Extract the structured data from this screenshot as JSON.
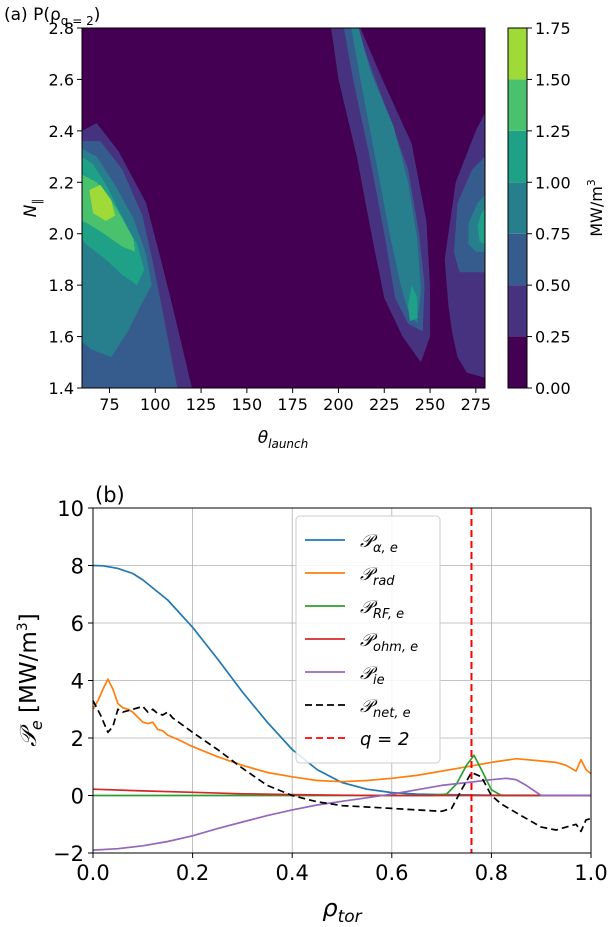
{
  "chart_data": [
    {
      "type": "heatmap",
      "title": "(a) P(ρ",
      "title_sub": "q = 2",
      "title_close": ")",
      "xlabel": "θ",
      "xlabel_sub": "launch",
      "ylabel": "N",
      "ylabel_sub": "∥",
      "xlim": [
        60,
        280
      ],
      "ylim": [
        1.4,
        2.8
      ],
      "xticks": [
        "75",
        "100",
        "125",
        "150",
        "175",
        "200",
        "225",
        "250",
        "275"
      ],
      "xtick_values": [
        75,
        100,
        125,
        150,
        175,
        200,
        225,
        250,
        275
      ],
      "yticks": [
        "1.4",
        "1.6",
        "1.8",
        "2.0",
        "2.2",
        "2.4",
        "2.6",
        "2.8"
      ],
      "ytick_values": [
        1.4,
        1.6,
        1.8,
        2.0,
        2.2,
        2.4,
        2.6,
        2.8
      ],
      "colorbar": {
        "label": "MW/m",
        "label_sup": "3",
        "levels": [
          0.0,
          0.25,
          0.5,
          0.75,
          1.0,
          1.25,
          1.5,
          1.75
        ],
        "ticks": [
          "0.00",
          "0.25",
          "0.50",
          "0.75",
          "1.00",
          "1.25",
          "1.50",
          "1.75"
        ],
        "colors": [
          "#440154",
          "#46327e",
          "#365c8d",
          "#277f8e",
          "#1fa187",
          "#4ac16d",
          "#a0da39",
          "#d7e21f"
        ]
      },
      "regions": [
        {
          "level": 0.25,
          "polygon": [
            [
              60,
              2.4
            ],
            [
              68,
              2.43
            ],
            [
              80,
              2.32
            ],
            [
              95,
              2.12
            ],
            [
              103,
              1.9
            ],
            [
              110,
              1.7
            ],
            [
              115,
              1.55
            ],
            [
              120,
              1.4
            ],
            [
              60,
              1.4
            ]
          ]
        },
        {
          "level": 0.25,
          "polygon": [
            [
              196,
              2.8
            ],
            [
              212,
              2.8
            ],
            [
              224,
              2.6
            ],
            [
              240,
              2.35
            ],
            [
              248,
              2.05
            ],
            [
              250,
              1.8
            ],
            [
              250,
              1.6
            ],
            [
              245,
              1.5
            ],
            [
              235,
              1.6
            ],
            [
              225,
              1.75
            ],
            [
              218,
              2.0
            ],
            [
              210,
              2.3
            ],
            [
              200,
              2.6
            ]
          ]
        },
        {
          "level": 0.25,
          "polygon": [
            [
              280,
              2.47
            ],
            [
              275,
              2.4
            ],
            [
              264,
              2.2
            ],
            [
              258,
              1.9
            ],
            [
              260,
              1.72
            ],
            [
              262,
              1.62
            ],
            [
              265,
              1.52
            ],
            [
              270,
              1.46
            ],
            [
              280,
              1.44
            ]
          ]
        },
        {
          "level": 0.5,
          "polygon": [
            [
              60,
              2.36
            ],
            [
              70,
              2.36
            ],
            [
              82,
              2.25
            ],
            [
              93,
              2.07
            ],
            [
              99,
              1.88
            ],
            [
              104,
              1.7
            ],
            [
              108,
              1.55
            ],
            [
              112,
              1.4
            ],
            [
              60,
              1.4
            ]
          ]
        },
        {
          "level": 0.5,
          "polygon": [
            [
              203,
              2.8
            ],
            [
              210,
              2.8
            ],
            [
              216,
              2.68
            ],
            [
              228,
              2.45
            ],
            [
              238,
              2.25
            ],
            [
              244,
              2.0
            ],
            [
              247,
              1.8
            ],
            [
              246,
              1.62
            ],
            [
              238,
              1.65
            ],
            [
              231,
              1.75
            ],
            [
              225,
              2.0
            ],
            [
              217,
              2.3
            ],
            [
              208,
              2.6
            ]
          ]
        },
        {
          "level": 0.5,
          "polygon": [
            [
              280,
              2.3
            ],
            [
              273,
              2.25
            ],
            [
              265,
              2.12
            ],
            [
              263,
              1.93
            ],
            [
              266,
              1.85
            ],
            [
              280,
              1.85
            ]
          ]
        },
        {
          "level": 0.75,
          "polygon": [
            [
              60,
              2.33
            ],
            [
              68,
              2.3
            ],
            [
              78,
              2.19
            ],
            [
              88,
              2.06
            ],
            [
              95,
              1.92
            ],
            [
              98,
              1.8
            ],
            [
              92,
              1.72
            ],
            [
              85,
              1.62
            ],
            [
              76,
              1.52
            ],
            [
              65,
              1.55
            ],
            [
              60,
              1.58
            ]
          ]
        },
        {
          "level": 0.75,
          "polygon": [
            [
              207,
              2.8
            ],
            [
              211,
              2.8
            ],
            [
              218,
              2.62
            ],
            [
              230,
              2.42
            ],
            [
              238,
              2.2
            ],
            [
              243,
              1.98
            ],
            [
              245,
              1.78
            ],
            [
              243,
              1.65
            ],
            [
              238,
              1.7
            ],
            [
              234,
              1.8
            ],
            [
              228,
              2.0
            ],
            [
              220,
              2.3
            ],
            [
              212,
              2.6
            ]
          ]
        },
        {
          "level": 0.75,
          "polygon": [
            [
              280,
              2.15
            ],
            [
              276,
              2.12
            ],
            [
              271,
              2.04
            ],
            [
              271,
              1.96
            ],
            [
              275,
              1.93
            ],
            [
              280,
              1.93
            ]
          ]
        },
        {
          "level": 1.0,
          "polygon": [
            [
              60,
              2.3
            ],
            [
              66,
              2.27
            ],
            [
              74,
              2.18
            ],
            [
              83,
              2.05
            ],
            [
              90,
              1.96
            ],
            [
              94,
              1.86
            ],
            [
              90,
              1.8
            ],
            [
              82,
              1.84
            ],
            [
              73,
              1.9
            ],
            [
              62,
              1.96
            ],
            [
              60,
              1.98
            ]
          ]
        },
        {
          "level": 1.0,
          "polygon": [
            [
              240,
              1.8
            ],
            [
              243,
              1.75
            ],
            [
              243,
              1.67
            ],
            [
              239,
              1.66
            ],
            [
              238,
              1.72
            ]
          ]
        },
        {
          "level": 1.0,
          "polygon": [
            [
              280,
              2.1
            ],
            [
              278,
              2.08
            ],
            [
              276,
              2.03
            ],
            [
              277,
              1.97
            ],
            [
              280,
              1.96
            ]
          ]
        },
        {
          "level": 1.25,
          "polygon": [
            [
              60,
              2.23
            ],
            [
              68,
              2.2
            ],
            [
              75,
              2.14
            ],
            [
              82,
              2.06
            ],
            [
              88,
              1.98
            ],
            [
              89,
              1.93
            ],
            [
              82,
              1.95
            ],
            [
              72,
              2.0
            ],
            [
              63,
              2.04
            ],
            [
              60,
              2.05
            ]
          ]
        },
        {
          "level": 1.5,
          "polygon": [
            [
              64,
              2.17
            ],
            [
              70,
              2.19
            ],
            [
              76,
              2.13
            ],
            [
              78,
              2.07
            ],
            [
              73,
              2.05
            ],
            [
              66,
              2.08
            ]
          ]
        }
      ]
    },
    {
      "type": "line",
      "title": "(b)",
      "xlabel": "ρ",
      "xlabel_sub": "tor",
      "ylabel": "𝒫",
      "ylabel_sub": "e",
      "ylabel_units": "[MW/m",
      "ylabel_units_sup": "3",
      "ylabel_close": "]",
      "xlim": [
        0.0,
        1.0
      ],
      "ylim": [
        -2,
        10
      ],
      "xticks": [
        "0.0",
        "0.2",
        "0.4",
        "0.6",
        "0.8",
        "1.0"
      ],
      "xtick_values": [
        0.0,
        0.2,
        0.4,
        0.6,
        0.8,
        1.0
      ],
      "yticks": [
        "−2",
        "0",
        "2",
        "4",
        "6",
        "8",
        "10"
      ],
      "ytick_values": [
        -2,
        0,
        2,
        4,
        6,
        8,
        10
      ],
      "grid": true,
      "legend_position": "top-right",
      "series": [
        {
          "name": "𝒫",
          "sub": "α, e",
          "color": "#1f77b4",
          "dash": "",
          "x": [
            0,
            0.02,
            0.05,
            0.08,
            0.1,
            0.15,
            0.2,
            0.25,
            0.3,
            0.35,
            0.4,
            0.45,
            0.5,
            0.55,
            0.6,
            0.65,
            0.7,
            0.8,
            1.0
          ],
          "y": [
            8.0,
            7.99,
            7.9,
            7.72,
            7.5,
            6.8,
            5.85,
            4.75,
            3.6,
            2.55,
            1.6,
            0.9,
            0.45,
            0.22,
            0.1,
            0.05,
            0.03,
            0.01,
            0.0
          ]
        },
        {
          "name": "𝒫",
          "sub": "rad",
          "color": "#ff7f0e",
          "dash": "",
          "x": [
            0,
            0.01,
            0.02,
            0.03,
            0.04,
            0.05,
            0.06,
            0.07,
            0.08,
            0.1,
            0.11,
            0.12,
            0.13,
            0.14,
            0.15,
            0.17,
            0.2,
            0.25,
            0.3,
            0.35,
            0.4,
            0.45,
            0.5,
            0.55,
            0.6,
            0.65,
            0.7,
            0.75,
            0.8,
            0.85,
            0.9,
            0.93,
            0.95,
            0.97,
            0.98,
            0.99,
            1.0
          ],
          "y": [
            3.0,
            3.3,
            3.7,
            4.05,
            3.7,
            3.2,
            3.05,
            3.0,
            2.9,
            2.55,
            2.5,
            2.55,
            2.3,
            2.25,
            2.1,
            1.95,
            1.7,
            1.35,
            1.05,
            0.8,
            0.65,
            0.52,
            0.48,
            0.52,
            0.6,
            0.7,
            0.85,
            1.0,
            1.15,
            1.28,
            1.2,
            1.15,
            1.05,
            0.85,
            1.25,
            0.9,
            0.75
          ]
        },
        {
          "name": "𝒫",
          "sub": "RF, e",
          "color": "#2ca02c",
          "dash": "",
          "x": [
            0,
            0.68,
            0.71,
            0.73,
            0.75,
            0.765,
            0.78,
            0.8,
            0.82,
            1.0
          ],
          "y": [
            0,
            0,
            0.05,
            0.4,
            1.05,
            1.4,
            0.9,
            0.2,
            0,
            0
          ]
        },
        {
          "name": "𝒫",
          "sub": "ohm, e",
          "color": "#d62728",
          "dash": "",
          "x": [
            0,
            0.1,
            0.2,
            0.3,
            0.4,
            0.5,
            0.6,
            1.0
          ],
          "y": [
            0.22,
            0.16,
            0.11,
            0.06,
            0.03,
            0.01,
            0,
            0
          ]
        },
        {
          "name": "𝒫",
          "sub": "ie",
          "color": "#9467bd",
          "dash": "",
          "x": [
            0,
            0.05,
            0.1,
            0.15,
            0.2,
            0.25,
            0.3,
            0.35,
            0.4,
            0.45,
            0.5,
            0.55,
            0.6,
            0.65,
            0.7,
            0.75,
            0.8,
            0.83,
            0.85,
            0.87,
            0.9,
            1.0
          ],
          "y": [
            -1.9,
            -1.85,
            -1.75,
            -1.6,
            -1.4,
            -1.15,
            -0.92,
            -0.7,
            -0.5,
            -0.33,
            -0.2,
            -0.08,
            0.05,
            0.2,
            0.35,
            0.45,
            0.55,
            0.6,
            0.55,
            0.35,
            0,
            0
          ]
        },
        {
          "name": "𝒫",
          "sub": "net, e",
          "color": "#000000",
          "dash": "7,4",
          "x": [
            0,
            0.015,
            0.03,
            0.04,
            0.05,
            0.06,
            0.08,
            0.1,
            0.11,
            0.12,
            0.13,
            0.14,
            0.15,
            0.16,
            0.2,
            0.25,
            0.3,
            0.35,
            0.4,
            0.45,
            0.5,
            0.55,
            0.6,
            0.65,
            0.7,
            0.72,
            0.74,
            0.76,
            0.78,
            0.8,
            0.82,
            0.85,
            0.9,
            0.93,
            0.95,
            0.97,
            0.98,
            0.99,
            1.0
          ],
          "y": [
            3.3,
            2.8,
            2.2,
            2.4,
            3.0,
            2.9,
            3.0,
            3.1,
            2.9,
            3.0,
            2.85,
            2.8,
            2.9,
            2.7,
            2.2,
            1.6,
            0.95,
            0.35,
            0,
            -0.22,
            -0.35,
            -0.4,
            -0.45,
            -0.5,
            -0.55,
            -0.45,
            0.2,
            0.8,
            0.65,
            0.0,
            -0.3,
            -0.6,
            -1.1,
            -1.2,
            -1.1,
            -1.0,
            -1.25,
            -0.85,
            -0.8
          ]
        }
      ],
      "vline": {
        "name": "q = 2",
        "x": 0.76,
        "color": "#ff0000",
        "dash": "7,4"
      }
    }
  ]
}
